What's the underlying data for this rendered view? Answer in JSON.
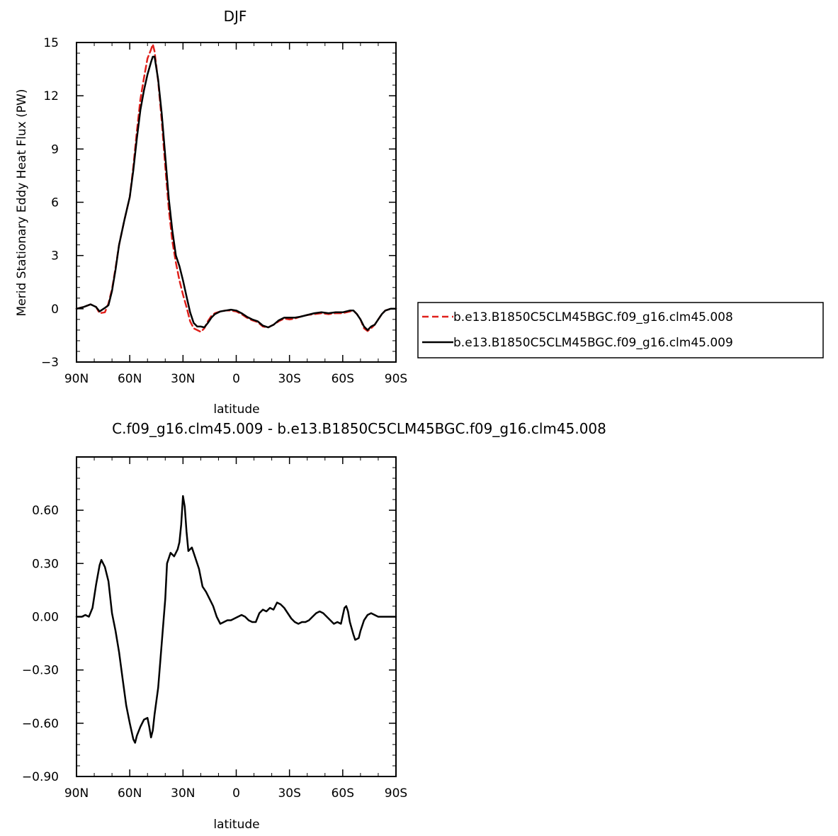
{
  "chart_data": [
    {
      "type": "line",
      "title": "DJF",
      "xlabel": "latitude",
      "ylabel": "Merid Stationary Eddy Heat Flux (PW)",
      "xlim": [
        90,
        -90
      ],
      "ylim": [
        -3,
        15
      ],
      "x_ticks": [
        {
          "value": 90,
          "label": "90N"
        },
        {
          "value": 60,
          "label": "60N"
        },
        {
          "value": 30,
          "label": "30N"
        },
        {
          "value": 0,
          "label": "0"
        },
        {
          "value": -30,
          "label": "30S"
        },
        {
          "value": -60,
          "label": "60S"
        },
        {
          "value": -90,
          "label": "90S"
        }
      ],
      "y_ticks": [
        {
          "value": -3,
          "label": "-3"
        },
        {
          "value": 0,
          "label": "0"
        },
        {
          "value": 3,
          "label": "3"
        },
        {
          "value": 6,
          "label": "6"
        },
        {
          "value": 9,
          "label": "9"
        },
        {
          "value": 12,
          "label": "12"
        },
        {
          "value": 15,
          "label": "15"
        }
      ],
      "legend": {
        "placement": "right",
        "entries": [
          {
            "name": "b.e13.B1850C5CLM45BGC.f09_g16.clm45.008",
            "color": "#e0201b",
            "dash": "dashed"
          },
          {
            "name": "b.e13.B1850C5CLM45BGC.f09_g16.clm45.009",
            "color": "#000000",
            "dash": "solid"
          }
        ]
      },
      "series": [
        {
          "name": "b.e13.B1850C5CLM45BGC.f09_g16.clm45.008",
          "color": "#e0201b",
          "dash": "dashed",
          "points": [
            [
              90,
              0
            ],
            [
              86,
              0.1
            ],
            [
              82,
              0.25
            ],
            [
              79,
              0.1
            ],
            [
              77,
              -0.25
            ],
            [
              74,
              -0.2
            ],
            [
              72,
              0.3
            ],
            [
              70,
              1.1
            ],
            [
              68,
              2.3
            ],
            [
              66,
              3.6
            ],
            [
              63,
              5.0
            ],
            [
              60,
              6.3
            ],
            [
              58,
              8.0
            ],
            [
              56,
              10.0
            ],
            [
              54,
              11.8
            ],
            [
              52,
              13.0
            ],
            [
              50,
              14.1
            ],
            [
              48,
              14.6
            ],
            [
              47,
              14.9
            ],
            [
              46,
              14.5
            ],
            [
              44,
              12.8
            ],
            [
              42,
              10.6
            ],
            [
              40,
              8.0
            ],
            [
              38,
              5.6
            ],
            [
              36,
              3.8
            ],
            [
              34,
              2.6
            ],
            [
              32,
              1.6
            ],
            [
              30,
              0.8
            ],
            [
              28,
              0.1
            ],
            [
              26,
              -0.7
            ],
            [
              24,
              -1.1
            ],
            [
              22,
              -1.2
            ],
            [
              20,
              -1.3
            ],
            [
              18,
              -1.1
            ],
            [
              16,
              -0.7
            ],
            [
              14,
              -0.4
            ],
            [
              12,
              -0.25
            ],
            [
              9,
              -0.15
            ],
            [
              6,
              -0.1
            ],
            [
              3,
              -0.1
            ],
            [
              0,
              -0.15
            ],
            [
              -3,
              -0.3
            ],
            [
              -6,
              -0.5
            ],
            [
              -9,
              -0.65
            ],
            [
              -12,
              -0.75
            ],
            [
              -15,
              -1.0
            ],
            [
              -18,
              -1.05
            ],
            [
              -21,
              -0.9
            ],
            [
              -24,
              -0.7
            ],
            [
              -27,
              -0.55
            ],
            [
              -30,
              -0.6
            ],
            [
              -33,
              -0.55
            ],
            [
              -36,
              -0.45
            ],
            [
              -40,
              -0.35
            ],
            [
              -44,
              -0.3
            ],
            [
              -48,
              -0.25
            ],
            [
              -52,
              -0.3
            ],
            [
              -56,
              -0.25
            ],
            [
              -60,
              -0.25
            ],
            [
              -64,
              -0.15
            ],
            [
              -66,
              -0.1
            ],
            [
              -68,
              -0.3
            ],
            [
              -70,
              -0.6
            ],
            [
              -72,
              -1.1
            ],
            [
              -74,
              -1.25
            ],
            [
              -76,
              -1.1
            ],
            [
              -78,
              -0.9
            ],
            [
              -80,
              -0.6
            ],
            [
              -82,
              -0.3
            ],
            [
              -84,
              -0.1
            ],
            [
              -87,
              0
            ],
            [
              -90,
              0
            ]
          ]
        },
        {
          "name": "b.e13.B1850C5CLM45BGC.f09_g16.clm45.009",
          "color": "#000000",
          "dash": "solid",
          "points": [
            [
              90,
              0
            ],
            [
              86,
              0.1
            ],
            [
              82,
              0.25
            ],
            [
              79,
              0.1
            ],
            [
              77,
              -0.15
            ],
            [
              74,
              0.05
            ],
            [
              72,
              0.2
            ],
            [
              70,
              1.0
            ],
            [
              68,
              2.2
            ],
            [
              66,
              3.6
            ],
            [
              63,
              5.0
            ],
            [
              60,
              6.3
            ],
            [
              58,
              7.8
            ],
            [
              56,
              9.6
            ],
            [
              54,
              11.2
            ],
            [
              52,
              12.3
            ],
            [
              50,
              13.2
            ],
            [
              48,
              13.9
            ],
            [
              47,
              14.2
            ],
            [
              46,
              14.2
            ],
            [
              44,
              12.9
            ],
            [
              42,
              11.0
            ],
            [
              40,
              8.6
            ],
            [
              38,
              6.2
            ],
            [
              36,
              4.4
            ],
            [
              34,
              3.0
            ],
            [
              32,
              2.4
            ],
            [
              30,
              1.6
            ],
            [
              28,
              0.7
            ],
            [
              26,
              -0.2
            ],
            [
              24,
              -0.8
            ],
            [
              22,
              -1.0
            ],
            [
              20,
              -1.0
            ],
            [
              18,
              -1.05
            ],
            [
              16,
              -0.8
            ],
            [
              14,
              -0.5
            ],
            [
              12,
              -0.3
            ],
            [
              9,
              -0.15
            ],
            [
              6,
              -0.1
            ],
            [
              3,
              -0.05
            ],
            [
              0,
              -0.1
            ],
            [
              -3,
              -0.25
            ],
            [
              -6,
              -0.45
            ],
            [
              -9,
              -0.6
            ],
            [
              -12,
              -0.7
            ],
            [
              -15,
              -0.95
            ],
            [
              -18,
              -1.05
            ],
            [
              -21,
              -0.9
            ],
            [
              -24,
              -0.65
            ],
            [
              -27,
              -0.5
            ],
            [
              -30,
              -0.5
            ],
            [
              -33,
              -0.5
            ],
            [
              -36,
              -0.45
            ],
            [
              -40,
              -0.35
            ],
            [
              -44,
              -0.25
            ],
            [
              -48,
              -0.2
            ],
            [
              -52,
              -0.25
            ],
            [
              -56,
              -0.2
            ],
            [
              -60,
              -0.2
            ],
            [
              -64,
              -0.1
            ],
            [
              -66,
              -0.1
            ],
            [
              -68,
              -0.3
            ],
            [
              -70,
              -0.6
            ],
            [
              -72,
              -1.0
            ],
            [
              -74,
              -1.2
            ],
            [
              -76,
              -1.0
            ],
            [
              -78,
              -0.9
            ],
            [
              -80,
              -0.6
            ],
            [
              -82,
              -0.3
            ],
            [
              -84,
              -0.1
            ],
            [
              -87,
              0
            ],
            [
              -90,
              0
            ]
          ]
        }
      ]
    },
    {
      "type": "line",
      "title": "C.f09_g16.clm45.009 - b.e13.B1850C5CLM45BGC.f09_g16.clm45.008",
      "xlabel": "latitude",
      "ylabel": "",
      "xlim": [
        90,
        -90
      ],
      "ylim": [
        -0.9,
        0.9
      ],
      "x_ticks": [
        {
          "value": 90,
          "label": "90N"
        },
        {
          "value": 60,
          "label": "60N"
        },
        {
          "value": 30,
          "label": "30N"
        },
        {
          "value": 0,
          "label": "0"
        },
        {
          "value": -30,
          "label": "30S"
        },
        {
          "value": -60,
          "label": "60S"
        },
        {
          "value": -90,
          "label": "90S"
        }
      ],
      "y_ticks": [
        {
          "value": -0.9,
          "label": "-0.90"
        },
        {
          "value": -0.6,
          "label": "-0.60"
        },
        {
          "value": -0.3,
          "label": "-0.30"
        },
        {
          "value": 0,
          "label": "0.00"
        },
        {
          "value": 0.3,
          "label": "0.30"
        },
        {
          "value": 0.6,
          "label": "0.60"
        }
      ],
      "series": [
        {
          "color": "#000000",
          "dash": "solid",
          "points": [
            [
              90,
              0
            ],
            [
              87,
              0
            ],
            [
              85,
              0.01
            ],
            [
              83,
              0
            ],
            [
              81,
              0.05
            ],
            [
              79,
              0.18
            ],
            [
              77,
              0.29
            ],
            [
              76,
              0.32
            ],
            [
              74,
              0.28
            ],
            [
              72,
              0.2
            ],
            [
              70,
              0.02
            ],
            [
              68,
              -0.08
            ],
            [
              66,
              -0.2
            ],
            [
              64,
              -0.35
            ],
            [
              62,
              -0.5
            ],
            [
              60,
              -0.6
            ],
            [
              58,
              -0.69
            ],
            [
              57,
              -0.71
            ],
            [
              56,
              -0.67
            ],
            [
              54,
              -0.62
            ],
            [
              52,
              -0.58
            ],
            [
              50,
              -0.57
            ],
            [
              49,
              -0.62
            ],
            [
              48,
              -0.68
            ],
            [
              47,
              -0.64
            ],
            [
              46,
              -0.55
            ],
            [
              44,
              -0.4
            ],
            [
              42,
              -0.15
            ],
            [
              40,
              0.1
            ],
            [
              39,
              0.3
            ],
            [
              37,
              0.36
            ],
            [
              35,
              0.34
            ],
            [
              33,
              0.38
            ],
            [
              32,
              0.42
            ],
            [
              31,
              0.52
            ],
            [
              30,
              0.68
            ],
            [
              29,
              0.62
            ],
            [
              28,
              0.48
            ],
            [
              27,
              0.37
            ],
            [
              25,
              0.39
            ],
            [
              23,
              0.33
            ],
            [
              21,
              0.27
            ],
            [
              19,
              0.17
            ],
            [
              17,
              0.14
            ],
            [
              15,
              0.1
            ],
            [
              13,
              0.06
            ],
            [
              11,
              0
            ],
            [
              9,
              -0.04
            ],
            [
              7,
              -0.03
            ],
            [
              5,
              -0.02
            ],
            [
              3,
              -0.02
            ],
            [
              1,
              -0.01
            ],
            [
              -1,
              0
            ],
            [
              -3,
              0.01
            ],
            [
              -5,
              0
            ],
            [
              -7,
              -0.02
            ],
            [
              -9,
              -0.03
            ],
            [
              -11,
              -0.03
            ],
            [
              -13,
              0.02
            ],
            [
              -15,
              0.04
            ],
            [
              -17,
              0.03
            ],
            [
              -19,
              0.05
            ],
            [
              -21,
              0.04
            ],
            [
              -23,
              0.08
            ],
            [
              -25,
              0.07
            ],
            [
              -27,
              0.05
            ],
            [
              -29,
              0.02
            ],
            [
              -31,
              -0.01
            ],
            [
              -33,
              -0.03
            ],
            [
              -35,
              -0.04
            ],
            [
              -37,
              -0.03
            ],
            [
              -39,
              -0.03
            ],
            [
              -41,
              -0.02
            ],
            [
              -43,
              0
            ],
            [
              -45,
              0.02
            ],
            [
              -47,
              0.03
            ],
            [
              -49,
              0.02
            ],
            [
              -51,
              0
            ],
            [
              -53,
              -0.02
            ],
            [
              -55,
              -0.04
            ],
            [
              -57,
              -0.03
            ],
            [
              -59,
              -0.04
            ],
            [
              -61,
              0.05
            ],
            [
              -62,
              0.06
            ],
            [
              -63,
              0.03
            ],
            [
              -64,
              -0.03
            ],
            [
              -66,
              -0.1
            ],
            [
              -67,
              -0.13
            ],
            [
              -69,
              -0.12
            ],
            [
              -70,
              -0.08
            ],
            [
              -72,
              -0.02
            ],
            [
              -74,
              0.01
            ],
            [
              -76,
              0.02
            ],
            [
              -78,
              0.01
            ],
            [
              -80,
              0
            ],
            [
              -83,
              0
            ],
            [
              -86,
              0
            ],
            [
              -90,
              0
            ]
          ]
        }
      ]
    }
  ]
}
